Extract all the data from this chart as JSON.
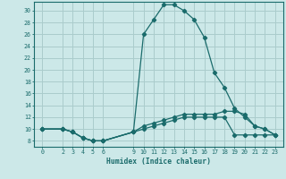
{
  "xlabel": "Humidex (Indice chaleur)",
  "bg_color": "#cce8e8",
  "grid_color": "#aacccc",
  "line_color": "#1a6b6b",
  "xticks": [
    0,
    2,
    3,
    4,
    5,
    6,
    9,
    10,
    11,
    12,
    13,
    14,
    15,
    16,
    17,
    18,
    19,
    20,
    21,
    22,
    23
  ],
  "yticks": [
    8,
    10,
    12,
    14,
    16,
    18,
    20,
    22,
    24,
    26,
    28,
    30
  ],
  "ylim": [
    7.0,
    31.5
  ],
  "xlim": [
    -0.8,
    23.8
  ],
  "series1": [
    [
      0,
      10
    ],
    [
      2,
      10
    ],
    [
      3,
      9.5
    ],
    [
      4,
      8.5
    ],
    [
      5,
      8
    ],
    [
      6,
      8
    ],
    [
      9,
      9.5
    ],
    [
      10,
      26
    ],
    [
      11,
      28.5
    ],
    [
      12,
      31
    ],
    [
      13,
      31
    ],
    [
      14,
      30
    ],
    [
      15,
      28.5
    ],
    [
      16,
      25.5
    ],
    [
      17,
      19.5
    ],
    [
      18,
      17
    ],
    [
      19,
      13.5
    ],
    [
      20,
      12
    ],
    [
      21,
      10.5
    ],
    [
      22,
      10
    ],
    [
      23,
      9
    ]
  ],
  "series2": [
    [
      0,
      10
    ],
    [
      2,
      10
    ],
    [
      3,
      9.5
    ],
    [
      4,
      8.5
    ],
    [
      5,
      8
    ],
    [
      6,
      8
    ],
    [
      9,
      9.5
    ],
    [
      10,
      10.5
    ],
    [
      11,
      11
    ],
    [
      12,
      11.5
    ],
    [
      13,
      12
    ],
    [
      14,
      12.5
    ],
    [
      15,
      12.5
    ],
    [
      16,
      12.5
    ],
    [
      17,
      12.5
    ],
    [
      18,
      13
    ],
    [
      19,
      13
    ],
    [
      20,
      12.5
    ],
    [
      21,
      10.5
    ],
    [
      22,
      10
    ],
    [
      23,
      9
    ]
  ],
  "series3": [
    [
      0,
      10
    ],
    [
      2,
      10
    ],
    [
      3,
      9.5
    ],
    [
      4,
      8.5
    ],
    [
      5,
      8
    ],
    [
      6,
      8
    ],
    [
      9,
      9.5
    ],
    [
      10,
      10
    ],
    [
      11,
      10.5
    ],
    [
      12,
      11
    ],
    [
      13,
      11.5
    ],
    [
      14,
      12
    ],
    [
      15,
      12
    ],
    [
      16,
      12
    ],
    [
      17,
      12
    ],
    [
      18,
      12
    ],
    [
      19,
      9
    ],
    [
      20,
      9
    ],
    [
      21,
      9
    ],
    [
      22,
      9
    ],
    [
      23,
      9
    ]
  ]
}
